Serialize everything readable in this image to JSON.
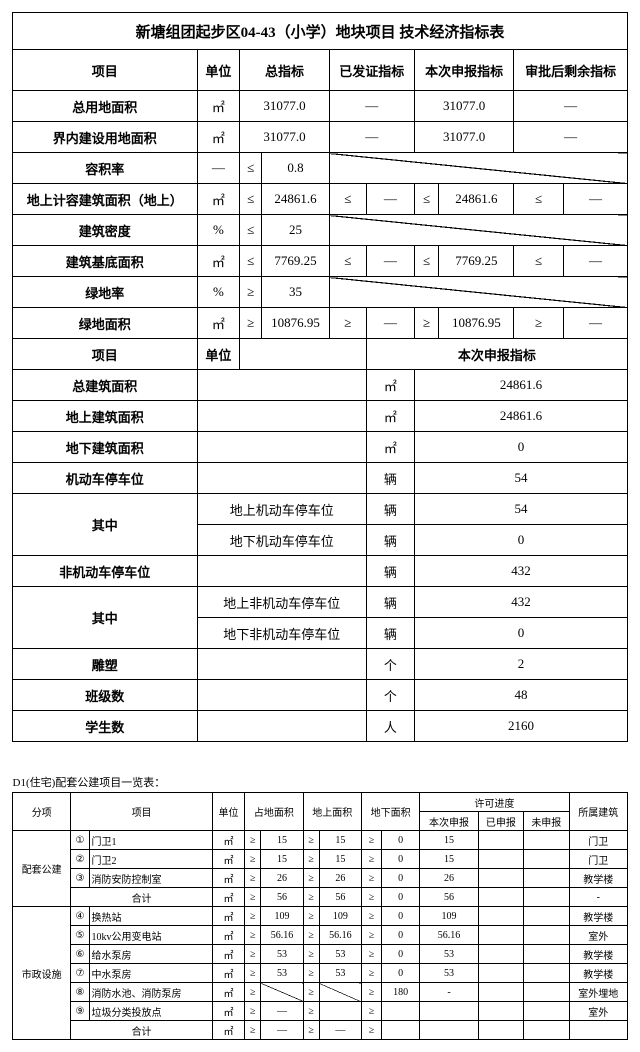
{
  "table1": {
    "title": "新塘组团起步区04-43（小学）地块项目 技术经济指标表",
    "headers": {
      "c1": "项目",
      "c2": "单位",
      "c3": "总指标",
      "c4": "已发证指标",
      "c5": "本次申报指标",
      "c6": "审批后剩余指标"
    },
    "r1": {
      "name": "总用地面积",
      "unit": "㎡",
      "total": "31077.0",
      "cert": "—",
      "apply": "31077.0",
      "rest": "—"
    },
    "r2": {
      "name": "界内建设用地面积",
      "unit": "㎡",
      "total": "31077.0",
      "cert": "—",
      "apply": "31077.0",
      "rest": "—"
    },
    "r3": {
      "name": "容积率",
      "unit": "—",
      "op": "≤",
      "val": "0.8"
    },
    "r4": {
      "name": "地上计容建筑面积（地上）",
      "unit": "㎡",
      "op": "≤",
      "val": "24861.6",
      "op2": "≤",
      "cert": "—",
      "op3": "≤",
      "apply": "24861.6",
      "op4": "≤",
      "rest": "—"
    },
    "r5": {
      "name": "建筑密度",
      "unit": "%",
      "op": "≤",
      "val": "25"
    },
    "r6": {
      "name": "建筑基底面积",
      "unit": "㎡",
      "op": "≤",
      "val": "7769.25",
      "op2": "≤",
      "cert": "—",
      "op3": "≤",
      "apply": "7769.25",
      "op4": "≤",
      "rest": "—"
    },
    "r7": {
      "name": "绿地率",
      "unit": "%",
      "op": "≥",
      "val": "35"
    },
    "r8": {
      "name": "绿地面积",
      "unit": "㎡",
      "op": "≥",
      "val": "10876.95",
      "op2": "≥",
      "cert": "—",
      "op3": "≥",
      "apply": "10876.95",
      "op4": "≥",
      "rest": "—"
    },
    "sub_hdr": {
      "c1": "项目",
      "c2": "单位",
      "c3": "本次申报指标"
    },
    "s1": {
      "name": "总建筑面积",
      "unit": "㎡",
      "val": "24861.6"
    },
    "s2": {
      "name": "地上建筑面积",
      "unit": "㎡",
      "val": "24861.6"
    },
    "s3": {
      "name": "地下建筑面积",
      "unit": "㎡",
      "val": "0"
    },
    "s4": {
      "name": "机动车停车位",
      "unit": "辆",
      "val": "54"
    },
    "s5a": {
      "group": "其中",
      "name": "地上机动车停车位",
      "unit": "辆",
      "val": "54"
    },
    "s5b": {
      "name": "地下机动车停车位",
      "unit": "辆",
      "val": "0"
    },
    "s6": {
      "name": "非机动车停车位",
      "unit": "辆",
      "val": "432"
    },
    "s7a": {
      "group": "其中",
      "name": "地上非机动车停车位",
      "unit": "辆",
      "val": "432"
    },
    "s7b": {
      "name": "地下非机动车停车位",
      "unit": "辆",
      "val": "0"
    },
    "s8": {
      "name": "雕塑",
      "unit": "个",
      "val": "2"
    },
    "s9": {
      "name": "班级数",
      "unit": "个",
      "val": "48"
    },
    "s10": {
      "name": "学生数",
      "unit": "人",
      "val": "2160"
    }
  },
  "table2": {
    "caption": "D1(住宅)配套公建项目一览表：",
    "headers": {
      "h1": "分项",
      "h2": "项目",
      "h3": "单位",
      "h4": "占地面积",
      "h5": "地上面积",
      "h6": "地下面积",
      "h7": "许可进度",
      "h7a": "本次申报",
      "h7b": "已申报",
      "h7c": "未申报",
      "h8": "所属建筑"
    },
    "grp1": "配套公建",
    "g1r1": {
      "no": "①",
      "name": "门卫1",
      "unit": "㎡",
      "op": "≥",
      "a": "15",
      "b": "15",
      "c": "0",
      "d": "15",
      "bld": "门卫"
    },
    "g1r2": {
      "no": "②",
      "name": "门卫2",
      "unit": "㎡",
      "op": "≥",
      "a": "15",
      "b": "15",
      "c": "0",
      "d": "15",
      "bld": "门卫"
    },
    "g1r3": {
      "no": "③",
      "name": "消防安防控制室",
      "unit": "㎡",
      "op": "≥",
      "a": "26",
      "b": "26",
      "c": "0",
      "d": "26",
      "bld": "教学楼"
    },
    "g1r4": {
      "name": "合计",
      "unit": "㎡",
      "op": "≥",
      "a": "56",
      "b": "56",
      "c": "0",
      "d": "56",
      "bld": "-"
    },
    "grp2": "市政设施",
    "g2r1": {
      "no": "④",
      "name": "换热站",
      "unit": "㎡",
      "op": "≥",
      "a": "109",
      "b": "109",
      "c": "0",
      "d": "109",
      "bld": "教学楼"
    },
    "g2r2": {
      "no": "⑤",
      "name": "10kv公用变电站",
      "unit": "㎡",
      "op": "≥",
      "a": "56.16",
      "b": "56.16",
      "c": "0",
      "d": "56.16",
      "bld": "室外"
    },
    "g2r3": {
      "no": "⑥",
      "name": "给水泵房",
      "unit": "㎡",
      "op": "≥",
      "a": "53",
      "b": "53",
      "c": "0",
      "d": "53",
      "bld": "教学楼"
    },
    "g2r4": {
      "no": "⑦",
      "name": "中水泵房",
      "unit": "㎡",
      "op": "≥",
      "a": "53",
      "b": "53",
      "c": "0",
      "d": "53",
      "bld": "教学楼"
    },
    "g2r5": {
      "no": "⑧",
      "name": "消防水池、消防泵房",
      "unit": "㎡",
      "op": "≥",
      "a": "",
      "b": "",
      "c": "180",
      "d": "-",
      "bld": "室外埋地"
    },
    "g2r6": {
      "no": "⑨",
      "name": "垃圾分类投放点",
      "unit": "㎡",
      "op": "≥",
      "a": "—",
      "b": "",
      "c": "",
      "d": "",
      "bld": "室外"
    },
    "g2r7": {
      "name": "合计",
      "unit": "㎡",
      "op": "≥",
      "a": "—",
      "b": "—",
      "c": "",
      "d": "",
      "bld": ""
    }
  }
}
